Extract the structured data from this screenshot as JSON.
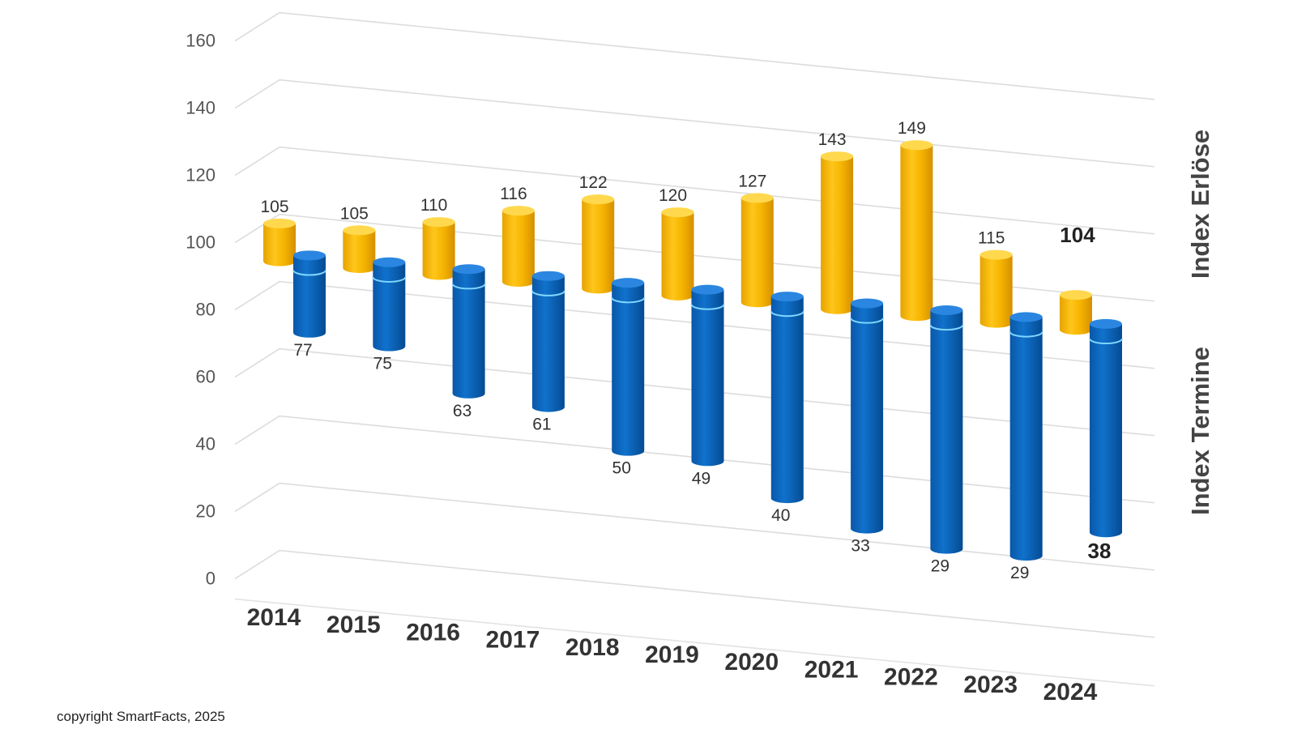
{
  "chart_data": {
    "type": "bar",
    "style": "3d-cylinder",
    "categories": [
      "2014",
      "2015",
      "2016",
      "2017",
      "2018",
      "2019",
      "2020",
      "2021",
      "2022",
      "2023",
      "2024"
    ],
    "series": [
      {
        "name": "Index Erlöse",
        "color": "#f5b800",
        "values": [
          105,
          105,
          110,
          116,
          122,
          120,
          127,
          143,
          149,
          115,
          104
        ]
      },
      {
        "name": "Index Termine",
        "color": "#0a64b8",
        "values": [
          77,
          75,
          63,
          61,
          50,
          49,
          40,
          33,
          29,
          29,
          38
        ]
      }
    ],
    "ylim": [
      0,
      160
    ],
    "yticks": [
      "0",
      "20",
      "40",
      "60",
      "80",
      "100",
      "120",
      "140",
      "160"
    ],
    "grid": true,
    "legend": "right, rotated series labels",
    "footer": "copyright SmartFacts, 2025"
  }
}
